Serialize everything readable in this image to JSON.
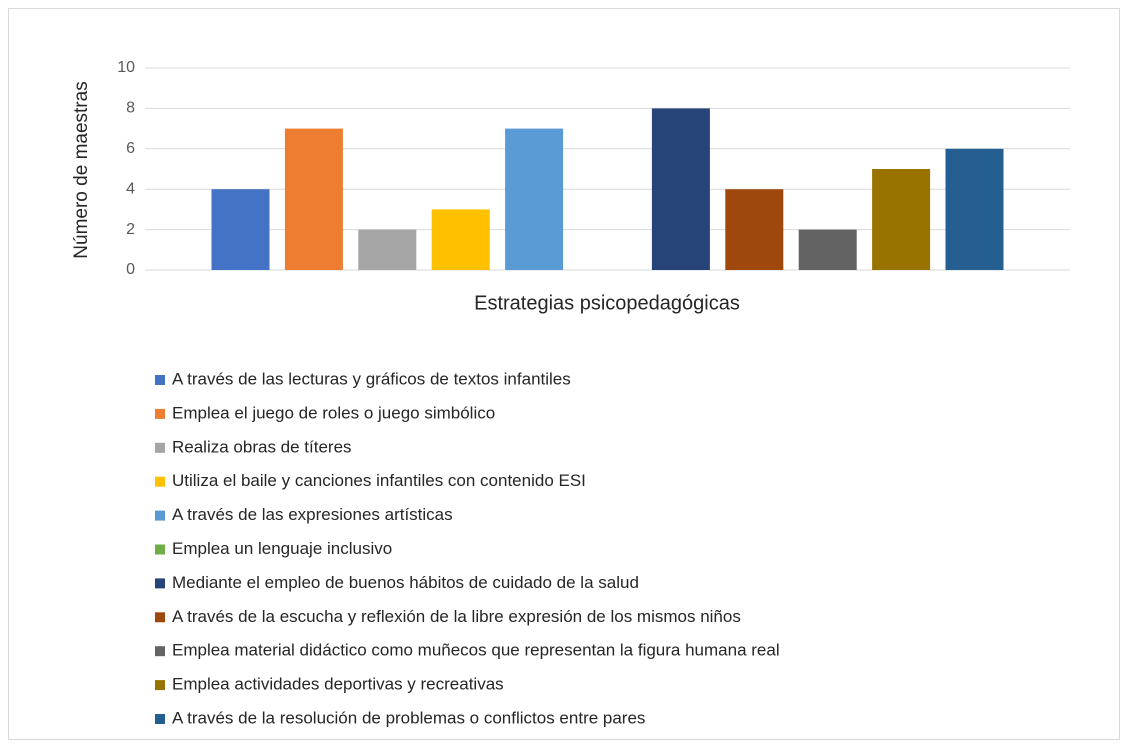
{
  "chart_data": {
    "type": "bar",
    "xlabel": "Estrategias psicopedagógicas",
    "ylabel": "Número de maestras",
    "categories": [
      null
    ],
    "series": [
      {
        "name": "A través de las lecturas y gráficos de textos infantiles",
        "color": "#4472c4",
        "values": [
          4
        ]
      },
      {
        "name": "Emplea el juego de roles o juego simbólico",
        "color": "#ed7d31",
        "values": [
          7
        ]
      },
      {
        "name": "Realiza obras de títeres",
        "color": "#a5a5a5",
        "values": [
          2
        ]
      },
      {
        "name": "Utiliza el baile y canciones infantiles con contenido ESI",
        "color": "#ffc000",
        "values": [
          3
        ]
      },
      {
        "name": "A través de las expresiones artísticas",
        "color": "#5b9bd5",
        "values": [
          7
        ]
      },
      {
        "name": "Emplea un lenguaje inclusivo",
        "color": "#70ad47",
        "values": [
          0
        ]
      },
      {
        "name": "Mediante el empleo de buenos hábitos de cuidado de la salud",
        "color": "#264478",
        "values": [
          8
        ]
      },
      {
        "name": "A través de la escucha y reflexión de la libre expresión de los mismos niños",
        "color": "#9e480e",
        "values": [
          4
        ]
      },
      {
        "name": "Emplea material didáctico como muñecos que representan la figura humana real",
        "color": "#636363",
        "values": [
          2
        ]
      },
      {
        "name": "Emplea actividades deportivas y recreativas",
        "color": "#997300",
        "values": [
          5
        ]
      },
      {
        "name": "A través de la resolución de problemas o conflictos entre pares",
        "color": "#255e91",
        "values": [
          6
        ]
      }
    ],
    "ylim": [
      0,
      10
    ],
    "yticks": [
      0,
      2,
      4,
      6,
      8,
      10
    ],
    "grid": true
  }
}
